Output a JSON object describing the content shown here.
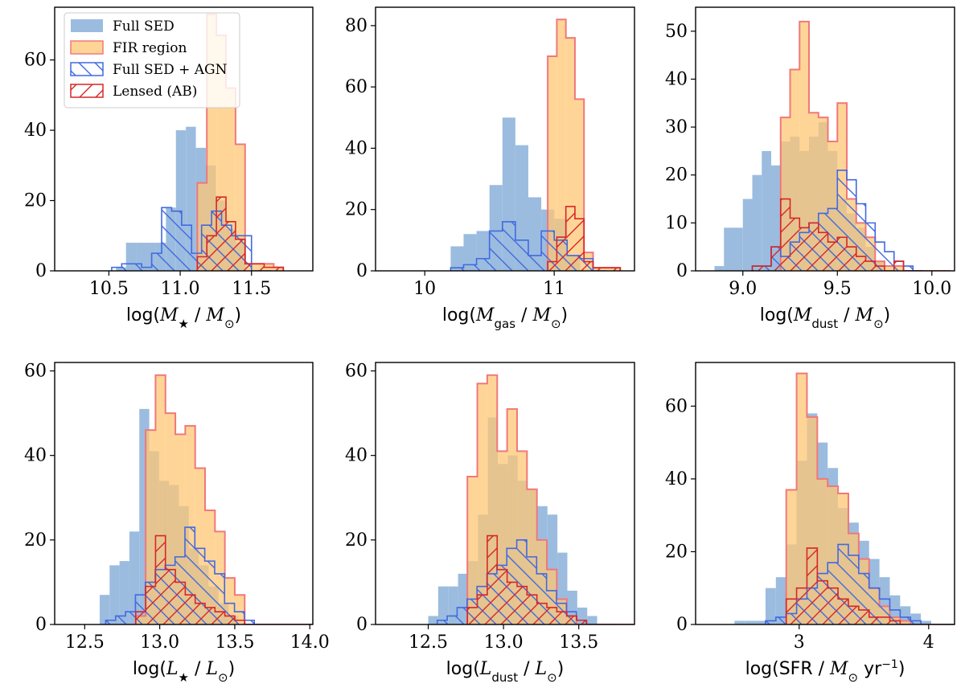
{
  "legend": [
    {
      "label": "Full SED",
      "style": "fill",
      "color": "#9bbcdf"
    },
    {
      "label": "FIR region",
      "style": "fill-edge",
      "color": "#ffc774",
      "edge": "#f0787a"
    },
    {
      "label": "Full SED + AGN",
      "style": "hatch-back",
      "color": "#4169e1"
    },
    {
      "label": "Lensed (AB)",
      "style": "hatch-fwd",
      "color": "#d62728"
    }
  ],
  "colors": {
    "full_sed": "#9bbcdf",
    "fir_fill": "#ffc774",
    "fir_edge": "#f0787a",
    "agn": "#4169e1",
    "lensed": "#d62728"
  },
  "chart_data": [
    {
      "type": "bar",
      "panel": "stellar-mass",
      "xlabel": "log(M★ / M⊙)",
      "xlim": [
        10.12,
        11.93
      ],
      "ylim": [
        0,
        75
      ],
      "xticks": [
        10.5,
        11.0,
        11.5
      ],
      "xtick_labels": [
        "10.5",
        "11.0",
        "11.5"
      ],
      "yticks": [
        0,
        20,
        40,
        60
      ],
      "ytick_labels": [
        "0",
        "20",
        "40",
        "60"
      ],
      "series": [
        {
          "name": "Full SED",
          "bin_start": 10.2,
          "bin_width": 0.07,
          "counts": [
            0,
            0,
            0,
            0,
            0,
            1,
            8,
            8,
            8,
            8,
            18,
            40,
            41,
            35,
            30,
            20,
            12,
            8,
            0,
            0,
            0,
            0,
            0,
            0
          ]
        },
        {
          "name": "FIR region",
          "bin_start": 11.12,
          "bin_width": 0.067,
          "counts": [
            25,
            73,
            67,
            52,
            36,
            2,
            2,
            2,
            1
          ]
        },
        {
          "name": "Full SED + AGN",
          "bin_start": 10.52,
          "bin_width": 0.07,
          "counts": [
            1,
            2,
            2,
            1,
            5,
            18,
            17,
            13,
            5,
            13,
            17,
            13,
            10,
            10,
            0,
            0
          ]
        },
        {
          "name": "Lensed (AB)",
          "bin_start": 11.12,
          "bin_width": 0.067,
          "counts": [
            4,
            10,
            21,
            14,
            9,
            2,
            2,
            1,
            1
          ]
        }
      ]
    },
    {
      "type": "bar",
      "panel": "gas-mass",
      "xlabel": "log(Mgas / M⊙)",
      "xlim": [
        9.62,
        11.62
      ],
      "ylim": [
        0,
        86
      ],
      "xticks": [
        10.0,
        11.0
      ],
      "xtick_labels": [
        "10",
        "11"
      ],
      "yticks": [
        0,
        20,
        40,
        60,
        80
      ],
      "ytick_labels": [
        "0",
        "20",
        "40",
        "60",
        "80"
      ],
      "series": [
        {
          "name": "Full SED",
          "bin_start": 10.2,
          "bin_width": 0.1,
          "counts": [
            8,
            12,
            13,
            28,
            50,
            41,
            24,
            20,
            17,
            5,
            0,
            0
          ]
        },
        {
          "name": "FIR region",
          "bin_start": 10.95,
          "bin_width": 0.07,
          "counts": [
            70,
            82,
            76,
            56,
            6,
            1,
            1,
            1
          ]
        },
        {
          "name": "Full SED + AGN",
          "bin_start": 10.2,
          "bin_width": 0.1,
          "counts": [
            1,
            2,
            4,
            13,
            16,
            10,
            5,
            13,
            10,
            5,
            4,
            0
          ]
        },
        {
          "name": "Lensed (AB)",
          "bin_start": 10.95,
          "bin_width": 0.07,
          "counts": [
            3,
            11,
            21,
            17,
            3,
            1,
            1,
            1
          ]
        }
      ]
    },
    {
      "type": "bar",
      "panel": "dust-mass",
      "xlabel": "log(Mdust / M⊙)",
      "xlim": [
        8.75,
        10.12
      ],
      "ylim": [
        0,
        55
      ],
      "xticks": [
        9.0,
        9.5,
        10.0
      ],
      "xtick_labels": [
        "9.0",
        "9.5",
        "10.0"
      ],
      "yticks": [
        0,
        10,
        20,
        30,
        40,
        50
      ],
      "ytick_labels": [
        "0",
        "10",
        "20",
        "30",
        "40",
        "50"
      ],
      "series": [
        {
          "name": "Full SED",
          "bin_start": 8.85,
          "bin_width": 0.05,
          "counts": [
            1,
            9,
            9,
            15,
            20,
            25,
            22,
            27,
            28,
            25,
            28,
            31,
            25,
            15,
            12,
            9,
            5,
            2
          ]
        },
        {
          "name": "FIR region",
          "bin_start": 9.2,
          "bin_width": 0.05,
          "counts": [
            32,
            42,
            52,
            33,
            32,
            27,
            35,
            15,
            10,
            7,
            2,
            1,
            1,
            0,
            0,
            0,
            0,
            0
          ]
        },
        {
          "name": "Full SED + AGN",
          "bin_start": 9.05,
          "bin_width": 0.05,
          "counts": [
            1,
            1,
            5,
            3,
            6,
            8,
            10,
            12,
            13,
            21,
            19,
            14,
            10,
            6,
            4,
            2,
            1,
            0
          ]
        },
        {
          "name": "Lensed (AB)",
          "bin_start": 9.05,
          "bin_width": 0.05,
          "counts": [
            1,
            1,
            5,
            15,
            11,
            9,
            10,
            8,
            6,
            7,
            5,
            3,
            2,
            1,
            0,
            2,
            0,
            0
          ]
        }
      ]
    },
    {
      "type": "bar",
      "panel": "stellar-luminosity",
      "xlabel": "log(L★ / L⊙)",
      "xlim": [
        12.3,
        14.02
      ],
      "ylim": [
        0,
        62
      ],
      "xticks": [
        12.5,
        13.0,
        13.5,
        14.0
      ],
      "xtick_labels": [
        "12.5",
        "13.0",
        "13.5",
        "14.0"
      ],
      "yticks": [
        0,
        20,
        40,
        60
      ],
      "ytick_labels": [
        "0",
        "20",
        "40",
        "60"
      ],
      "series": [
        {
          "name": "Full SED",
          "bin_start": 12.6,
          "bin_width": 0.066,
          "counts": [
            7,
            14,
            15,
            22,
            51,
            41,
            34,
            33,
            28,
            18,
            14,
            9,
            5,
            2,
            0,
            0,
            0,
            0
          ]
        },
        {
          "name": "FIR region",
          "bin_start": 12.84,
          "bin_width": 0.066,
          "counts": [
            2,
            46,
            59,
            50,
            45,
            47,
            37,
            27,
            22,
            11,
            7,
            0,
            0,
            0,
            0,
            0,
            0,
            0
          ]
        },
        {
          "name": "Full SED + AGN",
          "bin_start": 12.64,
          "bin_width": 0.066,
          "counts": [
            1,
            2,
            3,
            7,
            10,
            13,
            14,
            16,
            23,
            18,
            15,
            12,
            5,
            3,
            1,
            0,
            0,
            0
          ]
        },
        {
          "name": "Lensed (AB)",
          "bin_start": 12.84,
          "bin_width": 0.066,
          "counts": [
            3,
            9,
            21,
            13,
            10,
            7,
            5,
            4,
            3,
            2,
            1,
            0,
            0,
            0,
            0,
            0,
            0,
            0
          ]
        }
      ]
    },
    {
      "type": "bar",
      "panel": "dust-luminosity",
      "xlabel": "log(Ldust / L⊙)",
      "xlim": [
        12.15,
        13.87
      ],
      "ylim": [
        0,
        62
      ],
      "xticks": [
        12.5,
        13.0,
        13.5
      ],
      "xtick_labels": [
        "12.5",
        "13.0",
        "13.5"
      ],
      "yticks": [
        0,
        20,
        40,
        60
      ],
      "ytick_labels": [
        "0",
        "20",
        "40",
        "60"
      ],
      "series": [
        {
          "name": "Full SED",
          "bin_start": 12.5,
          "bin_width": 0.066,
          "counts": [
            2,
            9,
            9,
            12,
            15,
            26,
            49,
            38,
            40,
            34,
            32,
            28,
            26,
            17,
            8,
            4,
            2,
            0
          ]
        },
        {
          "name": "FIR region",
          "bin_start": 12.76,
          "bin_width": 0.066,
          "counts": [
            35,
            57,
            59,
            41,
            51,
            41,
            32,
            20,
            13,
            6,
            2,
            0,
            0,
            0,
            0,
            0,
            0,
            0
          ]
        },
        {
          "name": "Full SED + AGN",
          "bin_start": 12.56,
          "bin_width": 0.066,
          "counts": [
            1,
            2,
            4,
            6,
            9,
            12,
            14,
            18,
            20,
            16,
            12,
            8,
            5,
            3,
            1,
            0,
            0,
            0
          ]
        },
        {
          "name": "Lensed (AB)",
          "bin_start": 12.76,
          "bin_width": 0.066,
          "counts": [
            4,
            7,
            21,
            13,
            10,
            9,
            7,
            5,
            4,
            3,
            2,
            1,
            0,
            0,
            0,
            0,
            0,
            0
          ]
        }
      ]
    },
    {
      "type": "bar",
      "panel": "sfr",
      "xlabel": "log(SFR / M⊙ yr−1)",
      "xlim": [
        2.2,
        4.2
      ],
      "ylim": [
        0,
        72
      ],
      "xticks": [
        3,
        4
      ],
      "xtick_labels": [
        "3",
        "4"
      ],
      "yticks": [
        0,
        20,
        40,
        60
      ],
      "ytick_labels": [
        "0",
        "20",
        "40",
        "60"
      ],
      "series": [
        {
          "name": "Full SED",
          "bin_start": 2.5,
          "bin_width": 0.08,
          "counts": [
            1,
            1,
            1,
            10,
            13,
            22,
            45,
            58,
            50,
            43,
            32,
            28,
            23,
            18,
            13,
            8,
            5,
            3,
            1,
            0
          ]
        },
        {
          "name": "FIR region",
          "bin_start": 2.9,
          "bin_width": 0.08,
          "counts": [
            37,
            69,
            57,
            40,
            38,
            36,
            25,
            18,
            10,
            5,
            2,
            1,
            0,
            0,
            0,
            0,
            0,
            0,
            0,
            0
          ]
        },
        {
          "name": "Full SED + AGN",
          "bin_start": 2.74,
          "bin_width": 0.08,
          "counts": [
            1,
            2,
            3,
            7,
            10,
            14,
            17,
            22,
            19,
            14,
            10,
            7,
            4,
            2,
            1,
            0,
            0,
            0,
            0,
            0
          ]
        },
        {
          "name": "Lensed (AB)",
          "bin_start": 2.9,
          "bin_width": 0.08,
          "counts": [
            7,
            10,
            21,
            12,
            10,
            7,
            5,
            4,
            2,
            2,
            1,
            0,
            0,
            0,
            0,
            0,
            0,
            0,
            0,
            0
          ]
        }
      ]
    }
  ]
}
